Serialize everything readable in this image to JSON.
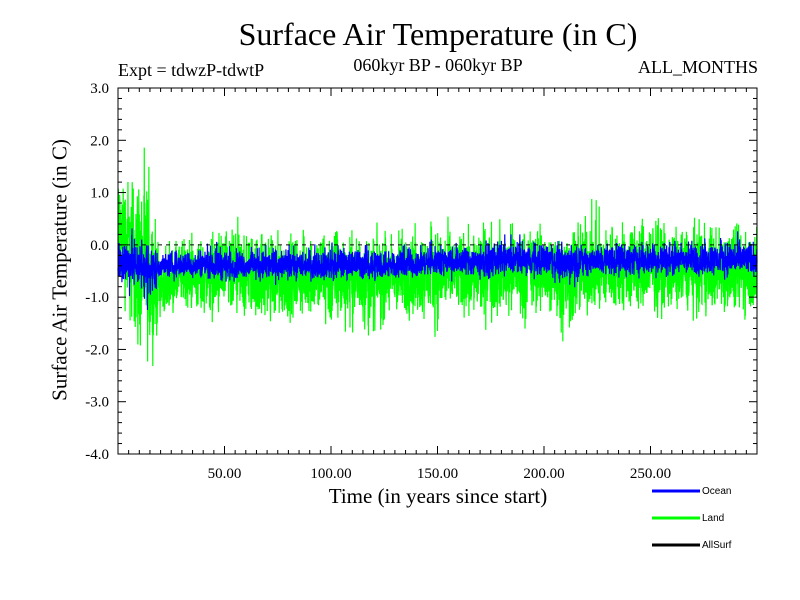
{
  "chart_data": {
    "type": "line",
    "title": "Surface Air Temperature (in C)",
    "subtitle_left": "Expt = tdwzP-tdwtP",
    "subtitle_mid": "060kyr BP - 060kyr BP",
    "subtitle_right": "ALL_MONTHS",
    "xlabel": "Time (in years since start)",
    "ylabel": "Surface Air Temperature (in C)",
    "xlim": [
      0,
      300
    ],
    "ylim": [
      -4.0,
      3.0
    ],
    "xticks": [
      50,
      100,
      150,
      200,
      250
    ],
    "xtick_labels": [
      "50.00",
      "100.00",
      "150.00",
      "200.00",
      "250.00"
    ],
    "yticks": [
      -4.0,
      -3.0,
      -2.0,
      -1.0,
      0.0,
      1.0,
      2.0,
      3.0
    ],
    "ytick_labels": [
      "-4.0",
      "-3.0",
      "-2.0",
      "-1.0",
      "0.0",
      "1.0",
      "2.0",
      "3.0"
    ],
    "reference_line": {
      "y": 0.0,
      "style": "dashed"
    },
    "legend_placement": "bottom-right",
    "series": [
      {
        "name": "Land",
        "color": "#00ff00",
        "x": [
          0,
          5,
          10,
          15,
          20,
          25,
          30,
          40,
          50,
          60,
          70,
          80,
          90,
          100,
          110,
          120,
          130,
          140,
          150,
          160,
          170,
          180,
          190,
          200,
          210,
          220,
          230,
          240,
          250,
          260,
          270,
          280,
          290,
          300
        ],
        "mean": [
          0.1,
          0.0,
          -0.3,
          -0.5,
          -0.8,
          -0.8,
          -0.6,
          -0.6,
          -0.6,
          -0.6,
          -0.6,
          -0.6,
          -0.6,
          -0.6,
          -0.6,
          -0.6,
          -0.6,
          -0.6,
          -0.5,
          -0.5,
          -0.5,
          -0.5,
          -0.5,
          -0.5,
          -0.5,
          -0.5,
          -0.5,
          -0.5,
          -0.5,
          -0.5,
          -0.5,
          -0.5,
          -0.5,
          -0.5
        ],
        "min": [
          -1.0,
          -2.0,
          -2.8,
          -2.9,
          -1.5,
          -1.4,
          -1.4,
          -1.6,
          -1.8,
          -1.7,
          -1.8,
          -1.7,
          -1.6,
          -2.0,
          -1.8,
          -2.0,
          -1.7,
          -1.7,
          -1.9,
          -1.7,
          -1.8,
          -1.6,
          -1.8,
          -1.6,
          -2.2,
          -1.6,
          -1.6,
          -1.6,
          -1.5,
          -1.6,
          -1.5,
          -1.6,
          -1.6,
          -1.6
        ],
        "max": [
          2.0,
          1.8,
          2.0,
          1.7,
          0.0,
          0.2,
          0.4,
          0.4,
          0.6,
          0.5,
          0.6,
          0.4,
          0.5,
          0.8,
          0.5,
          0.5,
          0.6,
          0.6,
          0.7,
          0.5,
          0.7,
          0.7,
          0.6,
          0.6,
          0.6,
          0.9,
          0.8,
          0.8,
          1.0,
          0.6,
          0.7,
          0.7,
          0.7,
          0.7
        ]
      },
      {
        "name": "Ocean",
        "color": "#0000ff",
        "x": [
          0,
          5,
          10,
          15,
          20,
          25,
          30,
          40,
          50,
          60,
          70,
          80,
          90,
          100,
          110,
          120,
          130,
          140,
          150,
          160,
          170,
          180,
          190,
          200,
          210,
          220,
          230,
          240,
          250,
          260,
          270,
          280,
          290,
          300
        ],
        "mean": [
          -0.3,
          -0.3,
          -0.4,
          -0.5,
          -0.4,
          -0.4,
          -0.4,
          -0.4,
          -0.4,
          -0.4,
          -0.4,
          -0.4,
          -0.4,
          -0.4,
          -0.4,
          -0.4,
          -0.4,
          -0.4,
          -0.3,
          -0.3,
          -0.3,
          -0.3,
          -0.3,
          -0.3,
          -0.3,
          -0.3,
          -0.3,
          -0.3,
          -0.3,
          -0.3,
          -0.3,
          -0.3,
          -0.3,
          -0.3
        ],
        "min": [
          -1.0,
          -1.1,
          -1.1,
          -1.4,
          -0.7,
          -0.7,
          -0.7,
          -0.7,
          -0.8,
          -0.7,
          -0.8,
          -0.8,
          -0.7,
          -0.8,
          -0.7,
          -0.8,
          -0.7,
          -0.7,
          -0.7,
          -0.7,
          -0.8,
          -0.7,
          -0.7,
          -0.7,
          -0.9,
          -0.7,
          -0.7,
          -0.7,
          -0.7,
          -0.7,
          -0.7,
          -0.7,
          -0.7,
          -0.7
        ],
        "max": [
          0.3,
          0.4,
          0.4,
          0.3,
          -0.1,
          0.0,
          0.0,
          0.1,
          0.1,
          0.0,
          0.1,
          0.0,
          0.1,
          0.1,
          0.1,
          0.1,
          0.1,
          0.1,
          0.1,
          0.1,
          0.1,
          0.2,
          0.2,
          0.2,
          0.1,
          0.1,
          0.2,
          0.2,
          0.2,
          0.2,
          0.2,
          0.2,
          0.3,
          0.2
        ]
      },
      {
        "name": "AllSurf",
        "color": "#000000",
        "x": [],
        "mean": []
      }
    ]
  }
}
